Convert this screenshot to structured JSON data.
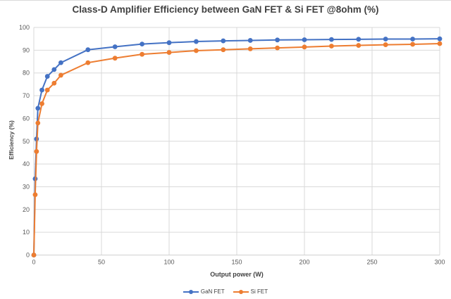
{
  "chart_data": {
    "type": "line",
    "title": "Class-D Amplifier Efficiency between GaN FET & Si FET @8ohm (%)",
    "xlabel": "Output power (W)",
    "ylabel": "Efficiency (%)",
    "xlim": [
      0,
      300
    ],
    "ylim": [
      0,
      100
    ],
    "xticks": [
      0,
      50,
      100,
      150,
      200,
      250,
      300
    ],
    "yticks": [
      0,
      10,
      20,
      30,
      40,
      50,
      60,
      70,
      80,
      90,
      100
    ],
    "grid": true,
    "legend_position": "bottom",
    "x": [
      0,
      1,
      2,
      3,
      6,
      10,
      15,
      20,
      40,
      60,
      80,
      100,
      120,
      140,
      160,
      180,
      200,
      220,
      240,
      260,
      280,
      300
    ],
    "series": [
      {
        "name": "GaN FET",
        "color": "#4472C4",
        "values": [
          0,
          33.5,
          51,
          64.5,
          72.5,
          78.5,
          81.5,
          84.5,
          90.2,
          91.5,
          92.7,
          93.3,
          93.8,
          94.1,
          94.3,
          94.5,
          94.6,
          94.7,
          94.8,
          94.9,
          94.9,
          95
        ]
      },
      {
        "name": "Si FET",
        "color": "#ED7D31",
        "values": [
          0,
          26.5,
          45.5,
          58,
          66.5,
          72.5,
          75.5,
          79,
          84.5,
          86.5,
          88.2,
          89,
          89.8,
          90.2,
          90.6,
          91,
          91.4,
          91.8,
          92.1,
          92.4,
          92.6,
          92.9
        ]
      }
    ],
    "colors": {
      "grid": "#d9d9d9",
      "axis": "#d0d0d0",
      "tick_label": "#595959"
    }
  }
}
